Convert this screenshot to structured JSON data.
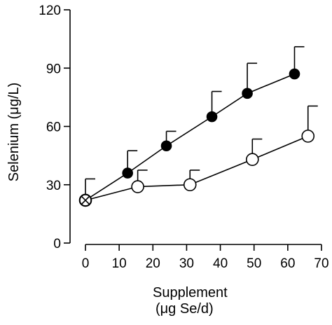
{
  "chart_data": {
    "type": "line",
    "title": "",
    "xlabel": "Supplement",
    "xlabel_line2": "(μg Se/d)",
    "ylabel": "Selenium (μg/L)",
    "xlim": [
      0,
      70
    ],
    "ylim": [
      0,
      120
    ],
    "x_ticks": [
      0,
      10,
      20,
      30,
      40,
      50,
      60,
      70
    ],
    "y_ticks": [
      0,
      30,
      60,
      90,
      120
    ],
    "x_tick_labels": [
      "0",
      "10",
      "20",
      "30",
      "40",
      "50",
      "60",
      "70"
    ],
    "y_tick_labels": [
      "0",
      "30",
      "60",
      "90",
      "120"
    ],
    "grid": false,
    "legend": "none",
    "series": [
      {
        "marker": "filled-circle",
        "color": "#000000",
        "points": [
          {
            "x": 0,
            "y": 22,
            "err": 11
          },
          {
            "x": 12.5,
            "y": 36,
            "err": 11.5
          },
          {
            "x": 24,
            "y": 50,
            "err": 7.5
          },
          {
            "x": 37.5,
            "y": 65,
            "err": 13
          },
          {
            "x": 48,
            "y": 77,
            "err": 15.5
          },
          {
            "x": 62,
            "y": 87,
            "err": 14
          }
        ]
      },
      {
        "marker": "open-circle",
        "color": "#000000",
        "points": [
          {
            "x": 0,
            "y": 22,
            "err": 0
          },
          {
            "x": 15.5,
            "y": 29,
            "err": 8.5
          },
          {
            "x": 31,
            "y": 30,
            "err": 7.5
          },
          {
            "x": 49.5,
            "y": 43,
            "err": 10.5
          },
          {
            "x": 66,
            "y": 55,
            "err": 15.5
          }
        ]
      }
    ],
    "baseline_marker": {
      "x": 0,
      "y": 22,
      "symbol": "crossed-circle"
    }
  }
}
